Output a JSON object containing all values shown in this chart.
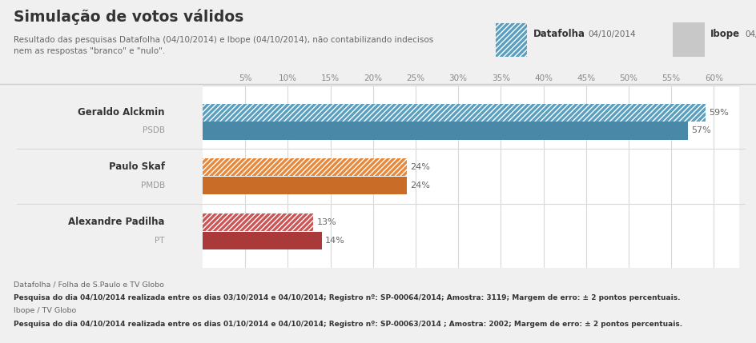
{
  "title": "Simulação de votos válidos",
  "subtitle": "Resultado das pesquisas Datafolha (04/10/2014) e Ibope (04/10/2014), não contabilizando indecisos\nnem as respostas \"branco\" e \"nulo\".",
  "legend_datafolha": "Datafolha",
  "legend_ibope": "Ibope",
  "legend_date": "04/10/2014",
  "candidates": [
    {
      "name": "Geraldo Alckmin",
      "party": "PSDB",
      "datafolha": 59,
      "ibope": 57
    },
    {
      "name": "Paulo Skaf",
      "party": "PMDB",
      "datafolha": 24,
      "ibope": 24
    },
    {
      "name": "Alexandre Padilha",
      "party": "PT",
      "datafolha": 13,
      "ibope": 14
    }
  ],
  "colors": {
    "alckmin_df": "#5b9fc0",
    "alckmin_ib": "#4a88a8",
    "skaf_df": "#e8883a",
    "skaf_ib": "#c96c28",
    "padilha_df": "#cc5555",
    "padilha_ib": "#aa3a3a",
    "chart_bg": "#f0f0f0",
    "chart_white": "#ffffff",
    "header_bg": "#ebebeb",
    "footer_bg": "#f0f0f0",
    "ibope_legend": "#c8c8c8",
    "grid": "#d8d8d8",
    "tick_color": "#888888",
    "text_dark": "#333333",
    "text_mid": "#666666",
    "text_light": "#999999"
  },
  "x_ticks": [
    5,
    10,
    15,
    20,
    25,
    30,
    35,
    40,
    45,
    50,
    55,
    60
  ],
  "xlim_max": 63,
  "footer_line1": "Datafolha / Folha de S.Paulo e TV Globo",
  "footer_line2": "Pesquisa do dia 04/10/2014 realizada entre os dias 03/10/2014 e 04/10/2014; Registro nº: SP-00064/2014; Amostra: 3119; Margem de erro: ± 2 pontos percentuais.",
  "footer_line3": "Ibope / TV Globo",
  "footer_line4": "Pesquisa do dia 04/10/2014 realizada entre os dias 01/10/2014 e 04/10/2014; Registro nº: SP-00063/2014 ; Amostra: 2002; Margem de erro: ± 2 pontos percentuais."
}
